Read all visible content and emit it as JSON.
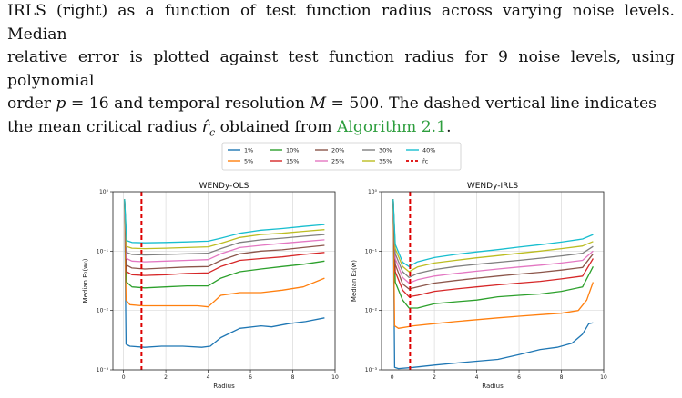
{
  "caption": {
    "line1": "IRLS (right) as a function of test function radius across varying noise levels. Median",
    "line2": "relative error is plotted against test function radius for 9 noise levels, using polynomial",
    "line3_pre": "order ",
    "line3_p": "p",
    "line3_mid": " = 16 and temporal resolution ",
    "line3_M": "M",
    "line3_post": " = 500. The dashed vertical line indicates",
    "line4_pre": "the mean critical radius ",
    "line4_r": "r̂",
    "line4_sub": "c",
    "line4_mid": " obtained from ",
    "line4_link": "Algorithm 2.1",
    "line4_post": "."
  },
  "legend": {
    "items": [
      {
        "label": "1%",
        "color": "#1f77b4",
        "dashed": false
      },
      {
        "label": "5%",
        "color": "#ff7f0e",
        "dashed": false
      },
      {
        "label": "10%",
        "color": "#2ca02c",
        "dashed": false
      },
      {
        "label": "15%",
        "color": "#d62728",
        "dashed": false
      },
      {
        "label": "20%",
        "color": "#8c564b",
        "dashed": false
      },
      {
        "label": "25%",
        "color": "#e377c2",
        "dashed": false
      },
      {
        "label": "30%",
        "color": "#7f7f7f",
        "dashed": false
      },
      {
        "label": "35%",
        "color": "#bcbd22",
        "dashed": false
      },
      {
        "label": "40%",
        "color": "#17becf",
        "dashed": false
      },
      {
        "label": "r̂c",
        "color": "#dd0000",
        "dashed": true
      }
    ]
  },
  "chart_data": [
    {
      "type": "line",
      "title": "WENDy-OLS",
      "xlabel": "Radius",
      "ylabel": "Median E₂(w₀)",
      "xlim": [
        -0.5,
        10
      ],
      "ylim_log10": [
        -3,
        0
      ],
      "x_ticks": [
        0,
        2,
        4,
        6,
        8,
        10
      ],
      "y_ticks": [
        "10⁻³",
        "10⁻²",
        "10⁻¹",
        "10⁰"
      ],
      "critical_radius": 0.85,
      "series": [
        {
          "name": "1%",
          "x": [
            0.05,
            0.12,
            0.3,
            1,
            1.8,
            2.8,
            3.7,
            4.1,
            4.6,
            5.5,
            6.5,
            7,
            7.8,
            8.6,
            9.5
          ],
          "y": [
            0.75,
            0.0027,
            0.0025,
            0.0024,
            0.0025,
            0.0025,
            0.0024,
            0.0025,
            0.0035,
            0.005,
            0.0055,
            0.0053,
            0.006,
            0.0065,
            0.0075
          ]
        },
        {
          "name": "5%",
          "x": [
            0.05,
            0.12,
            0.3,
            0.9,
            1.8,
            2.8,
            3.5,
            4,
            4.6,
            5.5,
            6.5,
            7.5,
            8.5,
            9.5
          ],
          "y": [
            0.75,
            0.015,
            0.0125,
            0.012,
            0.012,
            0.012,
            0.012,
            0.0115,
            0.018,
            0.02,
            0.02,
            0.022,
            0.025,
            0.035
          ]
        },
        {
          "name": "10%",
          "x": [
            0.05,
            0.15,
            0.4,
            1,
            2,
            3,
            4,
            4.6,
            5.5,
            6.5,
            7.5,
            8.5,
            9.5
          ],
          "y": [
            0.75,
            0.03,
            0.025,
            0.024,
            0.025,
            0.026,
            0.026,
            0.035,
            0.045,
            0.05,
            0.055,
            0.06,
            0.068
          ]
        },
        {
          "name": "15%",
          "x": [
            0.05,
            0.15,
            0.4,
            1,
            2,
            3,
            4,
            4.6,
            5.5,
            6.5,
            7.5,
            8.5,
            9.5
          ],
          "y": [
            0.75,
            0.045,
            0.04,
            0.039,
            0.04,
            0.042,
            0.043,
            0.055,
            0.07,
            0.075,
            0.08,
            0.088,
            0.095
          ]
        },
        {
          "name": "20%",
          "x": [
            0.05,
            0.15,
            0.4,
            1,
            2,
            3,
            4,
            4.6,
            5.5,
            6.5,
            7.5,
            8.5,
            9.5
          ],
          "y": [
            0.75,
            0.058,
            0.052,
            0.05,
            0.052,
            0.054,
            0.055,
            0.07,
            0.09,
            0.1,
            0.105,
            0.115,
            0.125
          ]
        },
        {
          "name": "25%",
          "x": [
            0.05,
            0.15,
            0.4,
            1,
            2,
            3,
            4,
            4.6,
            5.5,
            6.5,
            7.5,
            8.5,
            9.5
          ],
          "y": [
            0.75,
            0.075,
            0.068,
            0.066,
            0.068,
            0.07,
            0.072,
            0.09,
            0.115,
            0.125,
            0.135,
            0.145,
            0.155
          ]
        },
        {
          "name": "30%",
          "x": [
            0.05,
            0.15,
            0.4,
            1,
            2,
            3,
            4,
            4.6,
            5.5,
            6.5,
            7.5,
            8.5,
            9.5
          ],
          "y": [
            0.75,
            0.095,
            0.088,
            0.086,
            0.088,
            0.09,
            0.092,
            0.11,
            0.14,
            0.155,
            0.165,
            0.178,
            0.19
          ]
        },
        {
          "name": "35%",
          "x": [
            0.05,
            0.15,
            0.4,
            1,
            2,
            3,
            4,
            4.6,
            5.5,
            6.5,
            7.5,
            8.5,
            9.5
          ],
          "y": [
            0.75,
            0.12,
            0.112,
            0.11,
            0.112,
            0.115,
            0.118,
            0.135,
            0.17,
            0.19,
            0.2,
            0.215,
            0.23
          ]
        },
        {
          "name": "40%",
          "x": [
            0.05,
            0.15,
            0.4,
            1,
            2,
            3,
            4,
            4.6,
            5.5,
            6.5,
            7.5,
            8.5,
            9.5
          ],
          "y": [
            0.75,
            0.15,
            0.14,
            0.138,
            0.14,
            0.143,
            0.147,
            0.165,
            0.2,
            0.225,
            0.24,
            0.26,
            0.28
          ]
        }
      ]
    },
    {
      "type": "line",
      "title": "WENDy-IRLS",
      "xlabel": "Radius",
      "ylabel": "Median E₂(ŵ)",
      "xlim": [
        -0.5,
        10
      ],
      "ylim_log10": [
        -3,
        0
      ],
      "x_ticks": [
        0,
        2,
        4,
        6,
        8,
        10
      ],
      "y_ticks": [
        "10⁻³",
        "10⁻²",
        "10⁻¹",
        "10⁰"
      ],
      "critical_radius": 0.85,
      "series": [
        {
          "name": "1%",
          "x": [
            0.05,
            0.12,
            0.3,
            1,
            2,
            3,
            4,
            5,
            6,
            7,
            7.8,
            8.5,
            9,
            9.3,
            9.5
          ],
          "y": [
            0.75,
            0.0011,
            0.00105,
            0.0011,
            0.0012,
            0.0013,
            0.0014,
            0.0015,
            0.0018,
            0.0022,
            0.0024,
            0.0028,
            0.004,
            0.006,
            0.0062
          ]
        },
        {
          "name": "5%",
          "x": [
            0.05,
            0.12,
            0.3,
            1,
            2,
            3,
            4,
            5,
            6,
            7,
            8,
            8.8,
            9.2,
            9.5
          ],
          "y": [
            0.75,
            0.0055,
            0.005,
            0.0055,
            0.006,
            0.0065,
            0.007,
            0.0075,
            0.008,
            0.0085,
            0.009,
            0.01,
            0.015,
            0.03
          ]
        },
        {
          "name": "10%",
          "x": [
            0.05,
            0.15,
            0.5,
            0.8,
            1.2,
            2,
            3,
            4,
            5,
            6,
            7,
            8,
            9,
            9.5
          ],
          "y": [
            0.75,
            0.03,
            0.015,
            0.011,
            0.011,
            0.013,
            0.014,
            0.015,
            0.017,
            0.018,
            0.019,
            0.021,
            0.025,
            0.055
          ]
        },
        {
          "name": "15%",
          "x": [
            0.05,
            0.15,
            0.5,
            0.8,
            1.2,
            2,
            3,
            4,
            5,
            6,
            7,
            8,
            9,
            9.5
          ],
          "y": [
            0.75,
            0.045,
            0.022,
            0.017,
            0.018,
            0.021,
            0.023,
            0.025,
            0.027,
            0.029,
            0.031,
            0.034,
            0.038,
            0.075
          ]
        },
        {
          "name": "20%",
          "x": [
            0.05,
            0.15,
            0.5,
            0.8,
            1.2,
            2,
            3,
            4,
            5,
            6,
            7,
            8,
            9,
            9.5
          ],
          "y": [
            0.75,
            0.06,
            0.028,
            0.023,
            0.025,
            0.029,
            0.032,
            0.035,
            0.038,
            0.041,
            0.044,
            0.048,
            0.053,
            0.09
          ]
        },
        {
          "name": "25%",
          "x": [
            0.05,
            0.15,
            0.5,
            0.8,
            1.2,
            2,
            3,
            4,
            5,
            6,
            7,
            8,
            9,
            9.5
          ],
          "y": [
            0.75,
            0.075,
            0.036,
            0.029,
            0.033,
            0.038,
            0.042,
            0.046,
            0.05,
            0.054,
            0.058,
            0.063,
            0.07,
            0.1
          ]
        },
        {
          "name": "30%",
          "x": [
            0.05,
            0.15,
            0.5,
            0.8,
            1.2,
            2,
            3,
            4,
            5,
            6,
            7,
            8,
            9,
            9.5
          ],
          "y": [
            0.75,
            0.09,
            0.045,
            0.036,
            0.042,
            0.049,
            0.055,
            0.06,
            0.065,
            0.07,
            0.076,
            0.083,
            0.092,
            0.12
          ]
        },
        {
          "name": "35%",
          "x": [
            0.05,
            0.15,
            0.5,
            0.8,
            1.2,
            2,
            3,
            4,
            5,
            6,
            7,
            8,
            9,
            9.5
          ],
          "y": [
            0.75,
            0.11,
            0.055,
            0.045,
            0.054,
            0.063,
            0.07,
            0.077,
            0.084,
            0.092,
            0.1,
            0.11,
            0.122,
            0.145
          ]
        },
        {
          "name": "40%",
          "x": [
            0.05,
            0.15,
            0.5,
            0.8,
            1.2,
            2,
            3,
            4,
            5,
            6,
            7,
            8,
            9,
            9.5
          ],
          "y": [
            0.75,
            0.13,
            0.065,
            0.055,
            0.066,
            0.078,
            0.088,
            0.097,
            0.106,
            0.117,
            0.128,
            0.142,
            0.16,
            0.19
          ]
        }
      ]
    }
  ]
}
